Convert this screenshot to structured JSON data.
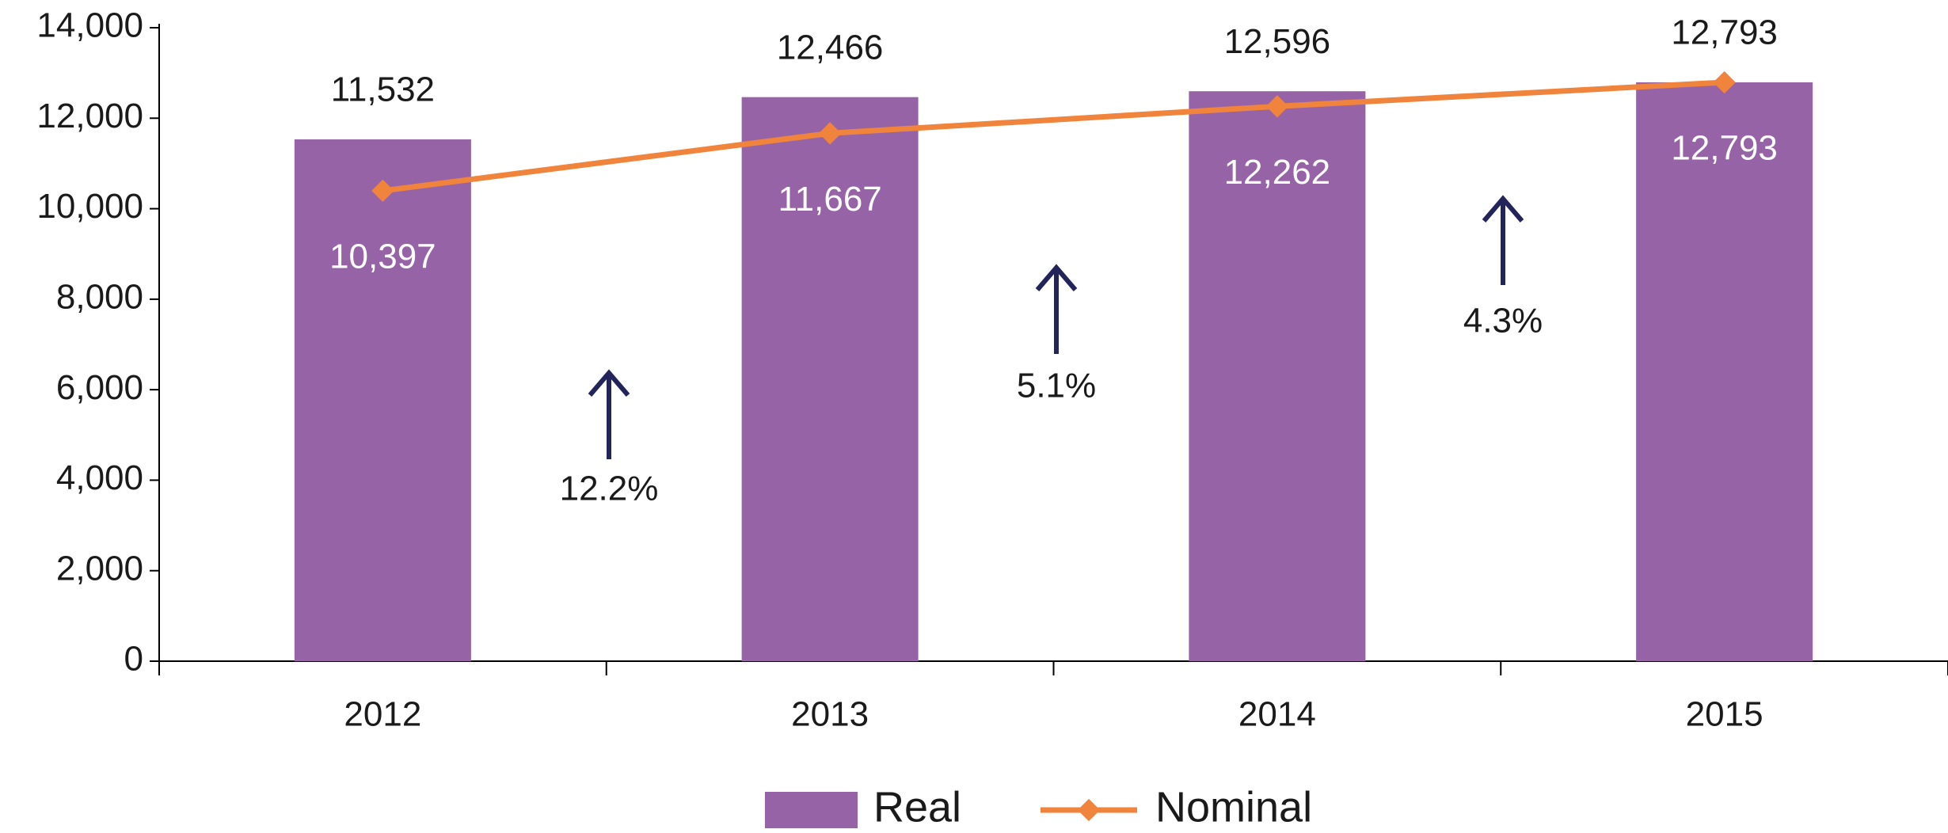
{
  "chart_data": {
    "type": "bar",
    "categories": [
      "2012",
      "2013",
      "2014",
      "2015"
    ],
    "series": [
      {
        "name": "Real",
        "type": "bar",
        "color": "#9663a6",
        "values": [
          11532,
          12466,
          12596,
          12793
        ],
        "value_labels": [
          "11,532",
          "12,466",
          "12,596",
          "12,793"
        ]
      },
      {
        "name": "Nominal",
        "type": "line",
        "color": "#f0843c",
        "values": [
          10397,
          11667,
          12262,
          12793
        ],
        "value_labels": [
          "10,397",
          "11,667",
          "12,262",
          "12,793"
        ]
      }
    ],
    "ylim": [
      0,
      14000
    ],
    "yticks": [
      0,
      {
        "value": 2000,
        "label": "2,000"
      },
      {
        "value": 4000,
        "label": "4,000"
      },
      {
        "value": 6000,
        "label": "6,000"
      },
      {
        "value": 8000,
        "label": "8,000"
      },
      {
        "value": 10000,
        "label": "10,000"
      },
      {
        "value": 12000,
        "label": "12,000"
      },
      {
        "value": 14000,
        "label": "14,000"
      }
    ],
    "annotations": [
      "12.2%",
      "5.1%",
      "4.3%"
    ],
    "legend": "bottom",
    "grid": false
  }
}
